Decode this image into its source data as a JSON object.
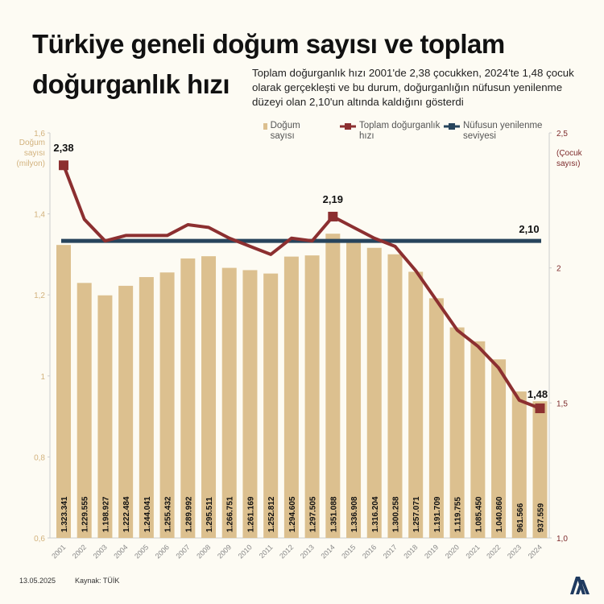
{
  "title_line1": "Türkiye geneli doğum sayısı ve toplam",
  "title_line2": "doğurganlık hızı",
  "subtitle": "Toplam doğurganlık hızı 2001'de 2,38 çocukken, 2024'te 1,48 çocuk olarak gerçekleşti ve bu durum, doğurganlığın nüfusun yenilenme düzeyi olan 2,10'un altında kaldığını gösterdi",
  "legend": {
    "births": "Doğum sayısı",
    "tfr": "Toplam doğurganlık hızı",
    "replacement": "Nüfusun yenilenme seviyesi"
  },
  "footer": {
    "date": "13.05.2025",
    "source": "Kaynak: TÜİK"
  },
  "logo_text": "AA",
  "colors": {
    "bar": "#dcc08f",
    "tfr_line": "#8c2f30",
    "replacement_line": "#27445c",
    "left_axis": "#d2b27d",
    "right_axis": "#7d2a2b",
    "background": "#fdfbf3"
  },
  "chart_data": {
    "type": "bar+line",
    "categories": [
      "2001",
      "2002",
      "2003",
      "2004",
      "2005",
      "2006",
      "2007",
      "2008",
      "2009",
      "2010",
      "2011",
      "2012",
      "2013",
      "2014",
      "2015",
      "2016",
      "2017",
      "2018",
      "2019",
      "2020",
      "2021",
      "2022",
      "2023",
      "2024"
    ],
    "left_axis": {
      "label": "Doğum sayısı (milyon)",
      "ylim": [
        0.6,
        1.6
      ],
      "ticks": [
        "0,6",
        "0,8",
        "1",
        "1,2",
        "1,4",
        "1,6"
      ],
      "tick_values": [
        0.6,
        0.8,
        1.0,
        1.2,
        1.4,
        1.6
      ]
    },
    "right_axis": {
      "label": "(Çocuk sayısı)",
      "ylim": [
        1.0,
        2.5
      ],
      "ticks": [
        "1,0",
        "1,5",
        "2",
        "2,5"
      ],
      "tick_values": [
        1.0,
        1.5,
        2.0,
        2.5
      ]
    },
    "series": [
      {
        "name": "Doğum sayısı",
        "type": "bar",
        "axis": "left",
        "values": [
          1323341,
          1229555,
          1198927,
          1222484,
          1244041,
          1255432,
          1289992,
          1295511,
          1266751,
          1261169,
          1252812,
          1294605,
          1297505,
          1351088,
          1336908,
          1316204,
          1300258,
          1257071,
          1191709,
          1119755,
          1085450,
          1040860,
          961566,
          937559
        ],
        "labels": [
          "1.323.341",
          "1.229.555",
          "1.198.927",
          "1.222.484",
          "1.244.041",
          "1.255.432",
          "1.289.992",
          "1.295.511",
          "1.266.751",
          "1.261.169",
          "1.252.812",
          "1.294.605",
          "1.297.505",
          "1.351.088",
          "1.336.908",
          "1.316.204",
          "1.300.258",
          "1.257.071",
          "1.191.709",
          "1.119.755",
          "1.085.450",
          "1.040.860",
          "961.566",
          "937.559"
        ]
      },
      {
        "name": "Toplam doğurganlık hızı",
        "type": "line",
        "axis": "right",
        "values": [
          2.38,
          2.18,
          2.1,
          2.12,
          2.12,
          2.12,
          2.16,
          2.15,
          2.11,
          2.08,
          2.05,
          2.11,
          2.1,
          2.19,
          2.15,
          2.11,
          2.08,
          1.99,
          1.88,
          1.77,
          1.71,
          1.63,
          1.51,
          1.48
        ],
        "annotations": [
          {
            "index": 0,
            "text": "2,38"
          },
          {
            "index": 13,
            "text": "2,19"
          },
          {
            "index": 23,
            "text": "1,48"
          }
        ]
      },
      {
        "name": "Nüfusun yenilenme seviyesi",
        "type": "line",
        "axis": "right",
        "value": 2.1,
        "annotation": "2,10"
      }
    ]
  }
}
